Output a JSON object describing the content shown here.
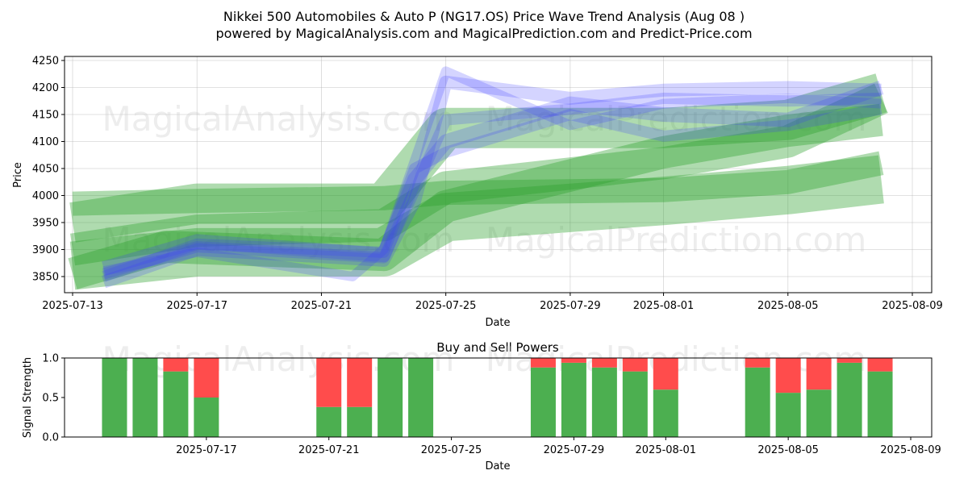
{
  "title_line1": "Nikkei 500 Automobiles & Auto P (NG17.OS) Price Wave Trend Analysis (Aug 08 )",
  "title_line2": "powered by MagicalAnalysis.com and MagicalPrediction.com and Predict-Price.com",
  "watermarks": [
    "MagicalAnalysis.com",
    "MagicalPrediction.com"
  ],
  "colors": {
    "green": "#2ca02c",
    "blue": "#3b3bff",
    "buy": "#4caf50",
    "sell": "#ff4c4c"
  },
  "chart_data": [
    {
      "type": "area",
      "title": "",
      "xlabel": "Date",
      "ylabel": "Price",
      "xlim": [
        "2025-07-12",
        "2025-08-09"
      ],
      "ylim": [
        3820,
        4255
      ],
      "grid": true,
      "x_ticks": [
        "2025-07-13",
        "2025-07-17",
        "2025-07-21",
        "2025-07-25",
        "2025-07-29",
        "2025-08-01",
        "2025-08-05",
        "2025-08-09"
      ],
      "y_ticks": [
        3850,
        3900,
        3950,
        4000,
        4050,
        4100,
        4150,
        4200,
        4250
      ],
      "green_bands": [
        {
          "x": [
            "2025-07-13",
            "2025-07-17",
            "2025-07-23",
            "2025-07-25",
            "2025-08-01",
            "2025-08-05",
            "2025-08-08"
          ],
          "y": [
            3985,
            3990,
            3995,
            4005,
            4010,
            4025,
            4060
          ],
          "width": 30
        },
        {
          "x": [
            "2025-07-13",
            "2025-07-17",
            "2025-07-23",
            "2025-07-25",
            "2025-08-01",
            "2025-08-05",
            "2025-08-08"
          ],
          "y": [
            3900,
            3935,
            3945,
            4015,
            4060,
            4100,
            4180
          ],
          "width": 40
        },
        {
          "x": [
            "2025-07-13",
            "2025-07-16",
            "2025-07-23",
            "2025-07-25",
            "2025-08-01",
            "2025-08-05",
            "2025-08-08"
          ],
          "y": [
            3855,
            3905,
            3890,
            3980,
            4080,
            4120,
            4140
          ],
          "width": 40
        },
        {
          "x": [
            "2025-07-13",
            "2025-07-17",
            "2025-07-23",
            "2025-07-25",
            "2025-08-01",
            "2025-08-05",
            "2025-08-08"
          ],
          "y": [
            3870,
            3895,
            3895,
            3960,
            3990,
            4010,
            4030
          ],
          "width": 60
        },
        {
          "x": [
            "2025-07-13",
            "2025-07-17",
            "2025-07-23",
            "2025-07-25",
            "2025-08-01",
            "2025-08-05",
            "2025-08-08"
          ],
          "y": [
            3950,
            3985,
            3985,
            4125,
            4125,
            4140,
            4190
          ],
          "width": 50
        }
      ],
      "blue_bands": [
        {
          "x": [
            "2025-07-14",
            "2025-07-17",
            "2025-07-23",
            "2025-07-24",
            "2025-07-25",
            "2025-07-29",
            "2025-08-01",
            "2025-08-05",
            "2025-08-08"
          ],
          "y": [
            3840,
            3900,
            3880,
            3990,
            4210,
            4180,
            4195,
            4200,
            4195
          ],
          "width": 16
        },
        {
          "x": [
            "2025-07-14",
            "2025-07-17",
            "2025-07-23",
            "2025-07-24",
            "2025-07-25",
            "2025-07-29",
            "2025-08-01",
            "2025-08-05",
            "2025-08-08"
          ],
          "y": [
            3855,
            3905,
            3885,
            4010,
            4140,
            4160,
            4180,
            4175,
            4180
          ],
          "width": 14
        },
        {
          "x": [
            "2025-07-14",
            "2025-07-17",
            "2025-07-23",
            "2025-07-24",
            "2025-07-25",
            "2025-07-29",
            "2025-08-01",
            "2025-08-05",
            "2025-08-08"
          ],
          "y": [
            3865,
            3915,
            3890,
            4030,
            4100,
            4170,
            4150,
            4140,
            4200
          ],
          "width": 18
        },
        {
          "x": [
            "2025-07-14",
            "2025-07-17",
            "2025-07-22",
            "2025-07-23",
            "2025-07-25",
            "2025-07-29",
            "2025-08-01",
            "2025-08-05",
            "2025-08-08"
          ],
          "y": [
            3860,
            3895,
            3850,
            3900,
            4230,
            4130,
            4170,
            4180,
            4170
          ],
          "width": 12
        },
        {
          "x": [
            "2025-07-14",
            "2025-07-17",
            "2025-07-23",
            "2025-07-24",
            "2025-07-25",
            "2025-07-29",
            "2025-08-01",
            "2025-08-05",
            "2025-08-08"
          ],
          "y": [
            3850,
            3910,
            3895,
            4050,
            4080,
            4150,
            4110,
            4130,
            4160
          ],
          "width": 14
        }
      ]
    },
    {
      "type": "bar",
      "title": "Buy and Sell Powers",
      "xlabel": "Date",
      "ylabel": "Signal Strength",
      "ylim": [
        0,
        1.0
      ],
      "x_ticks": [
        "2025-07-17",
        "2025-07-21",
        "2025-07-25",
        "2025-07-29",
        "2025-08-01",
        "2025-08-05",
        "2025-08-09"
      ],
      "y_ticks": [
        "0.0",
        "0.5",
        "1.0"
      ],
      "categories": [
        "2025-07-14",
        "2025-07-15",
        "2025-07-16",
        "2025-07-17",
        "2025-07-21",
        "2025-07-22",
        "2025-07-23",
        "2025-07-24",
        "2025-07-28",
        "2025-07-29",
        "2025-07-30",
        "2025-07-31",
        "2025-08-01",
        "2025-08-04",
        "2025-08-05",
        "2025-08-06",
        "2025-08-07",
        "2025-08-08"
      ],
      "series": [
        {
          "name": "Buy",
          "values": [
            1.0,
            1.0,
            0.83,
            0.5,
            0.38,
            0.38,
            1.0,
            1.0,
            0.88,
            0.94,
            0.88,
            0.83,
            0.6,
            0.88,
            0.56,
            0.6,
            0.94,
            0.83
          ]
        },
        {
          "name": "Sell",
          "values": [
            0.0,
            0.0,
            0.17,
            0.5,
            0.62,
            0.62,
            0.0,
            0.0,
            0.12,
            0.06,
            0.12,
            0.17,
            0.4,
            0.12,
            0.44,
            0.4,
            0.06,
            0.17
          ]
        }
      ]
    }
  ]
}
